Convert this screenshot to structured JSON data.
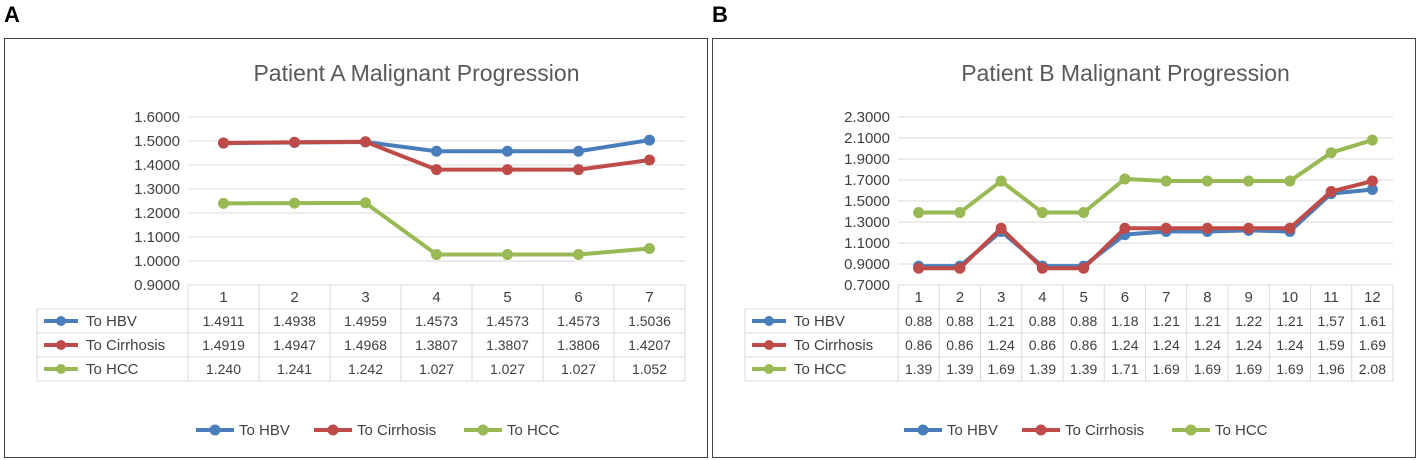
{
  "panels": [
    {
      "label": "A",
      "chart_data": {
        "type": "line",
        "title": "Patient A Malignant Progression",
        "categories": [
          "1",
          "2",
          "3",
          "4",
          "5",
          "6",
          "7"
        ],
        "ylim": [
          0.9,
          1.6
        ],
        "yticks": [
          "0.9000",
          "1.0000",
          "1.1000",
          "1.2000",
          "1.3000",
          "1.4000",
          "1.5000",
          "1.6000"
        ],
        "legend_position": "bottom",
        "series": [
          {
            "name": "To HBV",
            "color": "#4a7ebb",
            "values": [
              1.4911,
              1.4938,
              1.4959,
              1.4573,
              1.4573,
              1.4573,
              1.5036
            ],
            "labels": [
              "1.4911",
              "1.4938",
              "1.4959",
              "1.4573",
              "1.4573",
              "1.4573",
              "1.5036"
            ]
          },
          {
            "name": "To Cirrhosis",
            "color": "#be4b48",
            "values": [
              1.4919,
              1.4947,
              1.4968,
              1.3807,
              1.3807,
              1.3806,
              1.4207
            ],
            "labels": [
              "1.4919",
              "1.4947",
              "1.4968",
              "1.3807",
              "1.3807",
              "1.3806",
              "1.4207"
            ]
          },
          {
            "name": "To HCC",
            "color": "#98b954",
            "values": [
              1.24,
              1.241,
              1.242,
              1.027,
              1.027,
              1.027,
              1.052
            ],
            "labels": [
              "1.240",
              "1.241",
              "1.242",
              "1.027",
              "1.027",
              "1.027",
              "1.052"
            ]
          }
        ]
      }
    },
    {
      "label": "B",
      "chart_data": {
        "type": "line",
        "title": "Patient B Malignant Progression",
        "categories": [
          "1",
          "2",
          "3",
          "4",
          "5",
          "6",
          "7",
          "8",
          "9",
          "10",
          "11",
          "12"
        ],
        "ylim": [
          0.7,
          2.3
        ],
        "yticks": [
          "0.7000",
          "0.9000",
          "1.1000",
          "1.3000",
          "1.5000",
          "1.7000",
          "1.9000",
          "2.1000",
          "2.3000"
        ],
        "legend_position": "bottom",
        "series": [
          {
            "name": "To HBV",
            "color": "#4a7ebb",
            "values": [
              0.88,
              0.88,
              1.21,
              0.88,
              0.88,
              1.18,
              1.21,
              1.21,
              1.22,
              1.21,
              1.57,
              1.61
            ],
            "labels": [
              "0.88",
              "0.88",
              "1.21",
              "0.88",
              "0.88",
              "1.18",
              "1.21",
              "1.21",
              "1.22",
              "1.21",
              "1.57",
              "1.61"
            ]
          },
          {
            "name": "To Cirrhosis",
            "color": "#be4b48",
            "values": [
              0.86,
              0.86,
              1.24,
              0.86,
              0.86,
              1.24,
              1.24,
              1.24,
              1.24,
              1.24,
              1.59,
              1.69
            ],
            "labels": [
              "0.86",
              "0.86",
              "1.24",
              "0.86",
              "0.86",
              "1.24",
              "1.24",
              "1.24",
              "1.24",
              "1.24",
              "1.59",
              "1.69"
            ]
          },
          {
            "name": "To HCC",
            "color": "#98b954",
            "values": [
              1.39,
              1.39,
              1.69,
              1.39,
              1.39,
              1.71,
              1.69,
              1.69,
              1.69,
              1.69,
              1.96,
              2.08
            ],
            "labels": [
              "1.39",
              "1.39",
              "1.69",
              "1.39",
              "1.39",
              "1.71",
              "1.69",
              "1.69",
              "1.69",
              "1.69",
              "1.96",
              "2.08"
            ]
          }
        ]
      }
    }
  ]
}
